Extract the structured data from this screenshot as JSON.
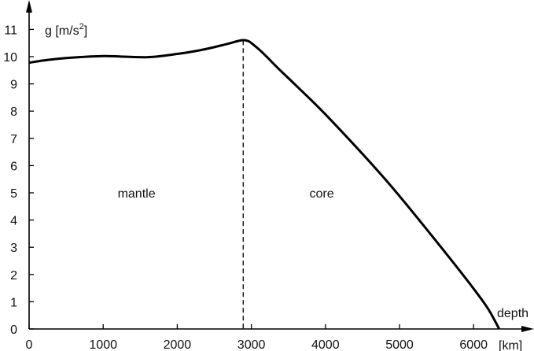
{
  "chart_data": {
    "type": "line",
    "ylabel": "g [m/s",
    "ylabel_sup": "2",
    "ylabel_end": "]",
    "xlabel": "depth",
    "xunit": "[km]",
    "xlim": [
      0,
      6371
    ],
    "ylim": [
      0,
      11
    ],
    "xticks": [
      0,
      1000,
      2000,
      3000,
      4000,
      5000,
      6000
    ],
    "yticks": [
      0,
      1,
      2,
      3,
      4,
      5,
      6,
      7,
      8,
      9,
      10,
      11
    ],
    "grid": false,
    "boundary_depth": 2890,
    "regions": [
      {
        "label": "mantle",
        "x": 1450,
        "y": 5
      },
      {
        "label": "core",
        "x": 3950,
        "y": 5
      }
    ],
    "series": [
      {
        "x": [
          0,
          250,
          500,
          1000,
          1580,
          2000,
          2350,
          2650,
          2860,
          2950,
          3000,
          3150,
          3370,
          3600,
          4000,
          4650,
          5000,
          5570,
          6000,
          6200,
          6345
        ],
        "y": [
          9.78,
          9.88,
          9.95,
          10.02,
          9.98,
          10.1,
          10.26,
          10.45,
          10.6,
          10.58,
          10.5,
          10.15,
          9.55,
          8.95,
          7.88,
          5.98,
          4.88,
          2.97,
          1.48,
          0.72,
          0
        ]
      }
    ],
    "color": "#000000"
  }
}
